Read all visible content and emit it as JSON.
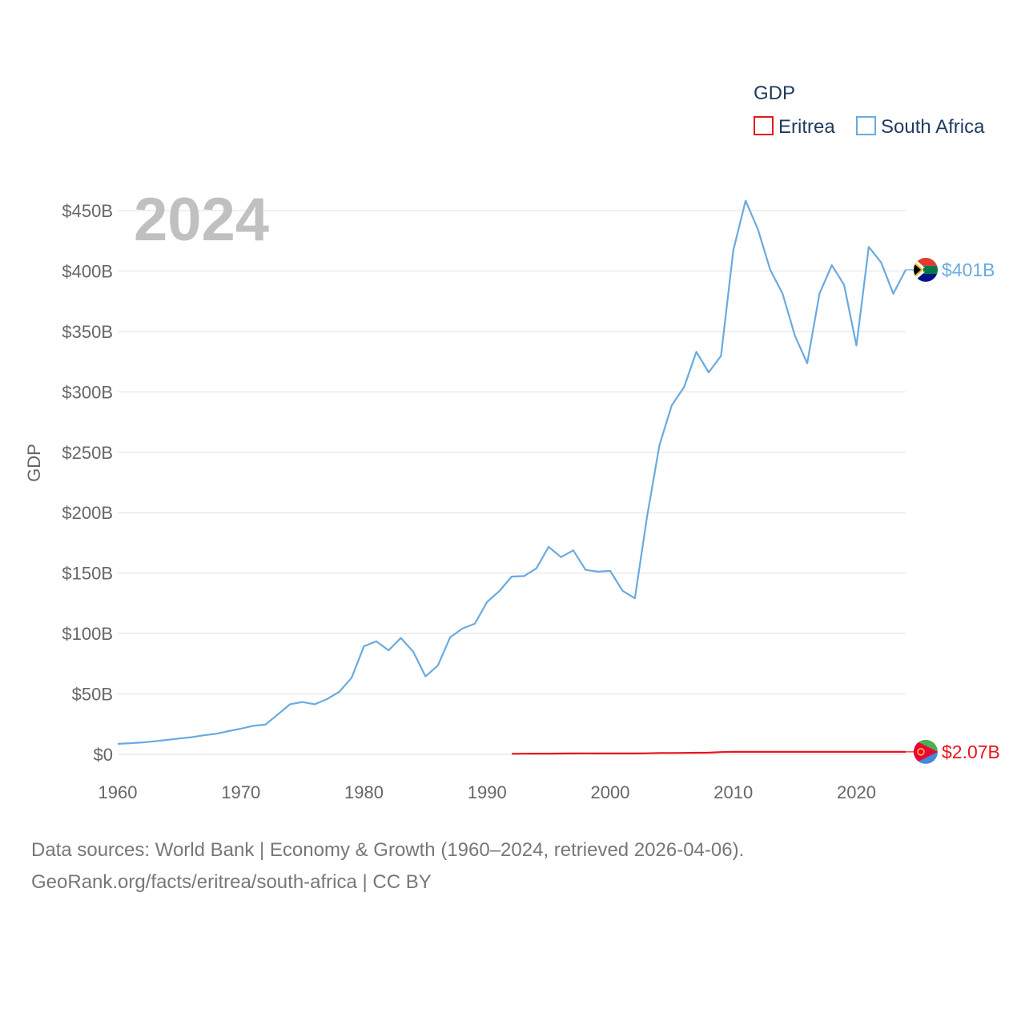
{
  "chart_data": {
    "type": "line",
    "title": "",
    "year_label": "2024",
    "legend_title": "GDP",
    "ylabel": "GDP",
    "xlabel": "",
    "xlim": [
      1960,
      2024
    ],
    "ylim": [
      0,
      450
    ],
    "y_unit": "billion USD",
    "x_ticks": [
      1960,
      1970,
      1980,
      1990,
      2000,
      2010,
      2020
    ],
    "x_tick_labels": [
      "1960",
      "1970",
      "1980",
      "1990",
      "2000",
      "2010",
      "2020"
    ],
    "y_ticks": [
      0,
      50,
      100,
      150,
      200,
      250,
      300,
      350,
      400,
      450
    ],
    "y_tick_labels": [
      "$0",
      "$50B",
      "$100B",
      "$150B",
      "$200B",
      "$250B",
      "$300B",
      "$350B",
      "$400B",
      "$450B"
    ],
    "series": [
      {
        "name": "Eritrea",
        "color": "#e8141c",
        "end_label": "$2.07B",
        "x": [
          1992,
          1993,
          1994,
          1995,
          1996,
          1997,
          1998,
          1999,
          2000,
          2001,
          2002,
          2003,
          2004,
          2005,
          2006,
          2007,
          2008,
          2009,
          2010,
          2011,
          2012,
          2013,
          2014,
          2015,
          2016,
          2017,
          2018,
          2019,
          2020,
          2021,
          2022,
          2023,
          2024
        ],
        "values": [
          0.48,
          0.53,
          0.6,
          0.62,
          0.69,
          0.74,
          0.77,
          0.74,
          0.71,
          0.75,
          0.73,
          0.87,
          1.11,
          1.1,
          1.21,
          1.32,
          1.38,
          1.86,
          2.12,
          2.07,
          2.07,
          2.07,
          2.07,
          2.07,
          2.07,
          2.07,
          2.07,
          2.07,
          2.07,
          2.07,
          2.07,
          2.07,
          2.07
        ]
      },
      {
        "name": "South Africa",
        "color": "#6aaae0",
        "end_label": "$401B",
        "x": [
          1960,
          1961,
          1962,
          1963,
          1964,
          1965,
          1966,
          1967,
          1968,
          1969,
          1970,
          1971,
          1972,
          1973,
          1974,
          1975,
          1976,
          1977,
          1978,
          1979,
          1980,
          1981,
          1982,
          1983,
          1984,
          1985,
          1986,
          1987,
          1988,
          1989,
          1990,
          1991,
          1992,
          1993,
          1994,
          1995,
          1996,
          1997,
          1998,
          1999,
          2000,
          2001,
          2002,
          2003,
          2004,
          2005,
          2006,
          2007,
          2008,
          2009,
          2010,
          2011,
          2012,
          2013,
          2014,
          2015,
          2016,
          2017,
          2018,
          2019,
          2020,
          2021,
          2022,
          2023,
          2024
        ],
        "values": [
          8.7,
          9.2,
          9.9,
          10.8,
          11.9,
          13.1,
          14.2,
          15.8,
          17.0,
          19.2,
          21.3,
          23.6,
          24.6,
          33.0,
          41.5,
          43.3,
          41.4,
          45.7,
          51.8,
          63.4,
          89.5,
          93.5,
          86.1,
          96.3,
          85.0,
          64.5,
          73.5,
          96.8,
          104.1,
          108.1,
          126.1,
          135.1,
          147.1,
          147.5,
          153.9,
          171.7,
          163.2,
          168.8,
          152.6,
          151.2,
          151.8,
          135.4,
          129.1,
          197.0,
          255.8,
          288.9,
          303.9,
          333.1,
          316.1,
          329.8,
          417.3,
          458.2,
          434.4,
          400.9,
          381.2,
          346.7,
          323.6,
          381.4,
          404.8,
          388.5,
          338.3,
          420.0,
          407.1,
          381.2,
          401.0
        ]
      }
    ]
  },
  "footer": {
    "line1": "Data sources: World Bank | Economy & Growth (1960–2024, retrieved 2026-04-06).",
    "line2": "GeoRank.org/facts/eritrea/south-africa | CC BY"
  },
  "flags": {
    "eritrea_icon": "eritrea-flag-icon",
    "south_africa_icon": "south-africa-flag-icon"
  }
}
